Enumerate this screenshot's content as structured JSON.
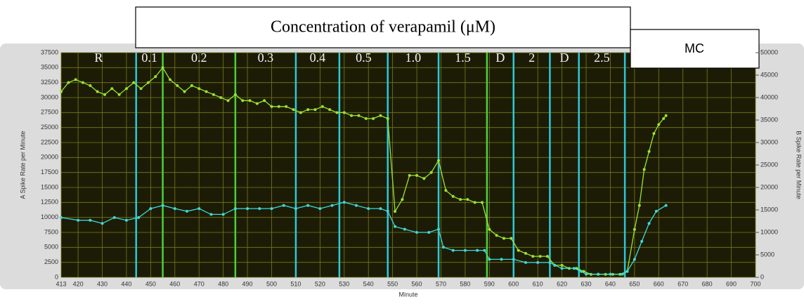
{
  "chart_data": {
    "type": "line",
    "title": "Concentration of verapamil (μM)",
    "mc_label": "MC",
    "x_label": "Minute",
    "y_label": "A Spike Rate per Minute",
    "y2_label": "B Spike Rate per Minute",
    "xlim": [
      413,
      700
    ],
    "xticks": [
      413,
      420,
      430,
      440,
      450,
      460,
      470,
      480,
      490,
      500,
      510,
      520,
      530,
      540,
      550,
      560,
      570,
      580,
      590,
      600,
      610,
      620,
      630,
      640,
      650,
      660,
      670,
      680,
      690,
      700
    ],
    "ylim": [
      0,
      37500
    ],
    "yticks": [
      0,
      2500,
      5000,
      7500,
      10000,
      12500,
      15000,
      17500,
      20000,
      22500,
      25000,
      27500,
      30000,
      32500,
      35000,
      37500
    ],
    "y2lim": [
      0,
      50000
    ],
    "y2ticks": [
      0,
      5000,
      10000,
      15000,
      20000,
      25000,
      30000,
      35000,
      40000,
      45000,
      50000
    ],
    "grid": true,
    "phase_labels": [
      "R",
      "0.1",
      "0.2",
      "0.3",
      "0.4",
      "0.5",
      "1.0",
      "1.5",
      "D",
      "2",
      "D",
      "2.5"
    ],
    "phase_boundaries": [
      {
        "x": 444,
        "color": "#2ec8d8"
      },
      {
        "x": 455,
        "color": "#4cd03a"
      },
      {
        "x": 485,
        "color": "#4cd03a"
      },
      {
        "x": 510,
        "color": "#2ec8d8"
      },
      {
        "x": 528,
        "color": "#2ec8d8"
      },
      {
        "x": 548,
        "color": "#2ec8d8"
      },
      {
        "x": 569,
        "color": "#2ec8d8"
      },
      {
        "x": 589,
        "color": "#4cd03a"
      },
      {
        "x": 600,
        "color": "#2ec8d8"
      },
      {
        "x": 615,
        "color": "#2ec8d8"
      },
      {
        "x": 627,
        "color": "#2ec8d8"
      },
      {
        "x": 646,
        "color": "#2ec8d8"
      }
    ],
    "series": [
      {
        "color": "#9be330",
        "x": [
          413,
          416,
          419,
          422,
          425,
          428,
          431,
          434,
          437,
          440,
          443,
          446,
          449,
          452,
          455,
          458,
          461,
          464,
          467,
          470,
          473,
          476,
          479,
          482,
          485,
          488,
          491,
          494,
          497,
          500,
          503,
          506,
          509,
          512,
          515,
          518,
          521,
          524,
          527,
          530,
          533,
          536,
          539,
          542,
          545,
          548,
          551,
          554,
          557,
          560,
          563,
          566,
          569,
          572,
          575,
          578,
          581,
          584,
          587,
          590,
          593,
          596,
          599,
          602,
          605,
          608,
          611,
          614,
          617,
          620,
          623,
          626,
          629,
          632,
          635,
          638,
          641,
          644,
          647,
          650,
          652,
          654,
          656,
          658,
          660,
          662,
          663
        ],
        "values": [
          31000,
          32500,
          33000,
          32500,
          32000,
          31000,
          30500,
          31500,
          30500,
          31500,
          32500,
          31500,
          32500,
          33500,
          35000,
          33000,
          32000,
          31000,
          32000,
          31500,
          31000,
          30500,
          30000,
          29500,
          30500,
          29500,
          29500,
          29000,
          29500,
          28500,
          28500,
          28500,
          28000,
          27500,
          28000,
          28000,
          28500,
          28000,
          27500,
          27500,
          27000,
          27000,
          26500,
          26500,
          27000,
          26500,
          11000,
          13000,
          17000,
          17000,
          16500,
          17500,
          19500,
          14500,
          13500,
          13000,
          13000,
          12500,
          12500,
          8000,
          7000,
          6500,
          6500,
          4500,
          4000,
          3500,
          3500,
          3500,
          2000,
          2000,
          1500,
          1500,
          1000,
          500,
          500,
          500,
          500,
          500,
          1000,
          8000,
          12000,
          18000,
          21000,
          24000,
          25500,
          26500,
          27000
        ]
      },
      {
        "color": "#3fd8d8",
        "axis": "y2",
        "x": [
          413,
          420,
          425,
          430,
          435,
          440,
          445,
          450,
          455,
          460,
          465,
          470,
          475,
          480,
          485,
          490,
          495,
          500,
          505,
          510,
          515,
          520,
          525,
          530,
          535,
          540,
          545,
          548,
          551,
          555,
          560,
          565,
          569,
          571,
          575,
          580,
          585,
          588,
          590,
          595,
          600,
          605,
          610,
          615,
          617,
          620,
          625,
          628,
          630,
          635,
          640,
          645,
          647,
          650,
          653,
          656,
          659,
          663
        ],
        "values": [
          13300,
          12700,
          12700,
          12000,
          13300,
          12700,
          13300,
          15300,
          16000,
          15300,
          14700,
          15300,
          14000,
          14000,
          15300,
          15300,
          15300,
          15300,
          16000,
          15300,
          16000,
          15300,
          16000,
          16700,
          16000,
          15300,
          15300,
          14700,
          11300,
          10700,
          10000,
          10000,
          10700,
          6700,
          6000,
          6000,
          6000,
          6000,
          4000,
          4000,
          4000,
          3300,
          3300,
          3300,
          2700,
          2000,
          2000,
          1300,
          700,
          700,
          700,
          700,
          1300,
          4000,
          8000,
          12000,
          14700,
          16000
        ]
      }
    ]
  }
}
